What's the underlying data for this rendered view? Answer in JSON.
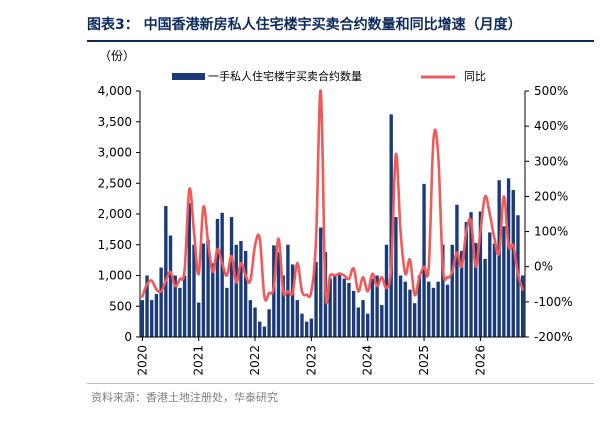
{
  "header": {
    "figure_label": "图表3：",
    "title": "中国香港新房私人住宅楼宇买卖合约数量和同比增速（月度）"
  },
  "footer": {
    "source": "资料来源：香港土地注册处，华泰研究"
  },
  "colors": {
    "bar": "#1a3a7a",
    "line": "#f05a5a",
    "title": "#0b2a5b"
  },
  "chart_data": {
    "type": "bar",
    "left_axis_unit": "（份）",
    "series": [
      {
        "name": "一手私人住宅楼宇买卖合约数量",
        "type": "bar",
        "axis": "left",
        "values": [
          600,
          1000,
          600,
          700,
          1130,
          2130,
          1650,
          1000,
          800,
          1000,
          2180,
          1500,
          560,
          1520,
          1580,
          1200,
          1920,
          2020,
          800,
          1950,
          1500,
          1560,
          1400,
          600,
          480,
          250,
          170,
          450,
          1490,
          1380,
          1000,
          1500,
          1180,
          600,
          380,
          250,
          300,
          1220,
          1780,
          1380,
          950,
          1000,
          1050,
          950,
          880,
          750,
          480,
          600,
          380,
          950,
          1000,
          520,
          1500,
          3620,
          1950,
          1000,
          900,
          770,
          550,
          1000,
          2490,
          900,
          800,
          900,
          1500,
          850,
          1500,
          2150,
          1400,
          1870,
          2030,
          1530,
          2040,
          1270,
          1700,
          1520,
          2550,
          1800,
          2580,
          2390,
          1980,
          1000
        ]
      },
      {
        "name": "同比",
        "type": "line",
        "axis": "right",
        "values": [
          -85,
          -50,
          -40,
          -65,
          -70,
          -40,
          -15,
          -55,
          -35,
          -10,
          220,
          100,
          -20,
          170,
          70,
          -15,
          50,
          10,
          -25,
          30,
          -45,
          10,
          -25,
          -40,
          60,
          80,
          -85,
          -75,
          -60,
          80,
          -70,
          -70,
          -75,
          10,
          -70,
          -80,
          -70,
          80,
          500,
          -70,
          -25,
          -25,
          -20,
          -25,
          -35,
          -5,
          -70,
          -30,
          -70,
          -20,
          -55,
          -30,
          -60,
          0,
          320,
          100,
          -20,
          20,
          -80,
          -30,
          0,
          0,
          360,
          320,
          0,
          -30,
          -15,
          40,
          0,
          100,
          130,
          0,
          100,
          200,
          150,
          80,
          40,
          200,
          60,
          60,
          -20,
          -65
        ]
      }
    ],
    "xlabel": "",
    "x_tick_labels": [
      "2020",
      "2021",
      "2022",
      "2023",
      "2024",
      "2025",
      "2026"
    ],
    "left_axis": {
      "ylim": [
        0,
        4000
      ],
      "tick_labels": [
        "0",
        "500",
        "1,000",
        "1,500",
        "2,000",
        "2,500",
        "3,000",
        "3,500",
        "4,000"
      ]
    },
    "right_axis": {
      "ylim": [
        -200,
        500
      ],
      "tick_labels": [
        "-200%",
        "-100%",
        "0%",
        "100%",
        "200%",
        "300%",
        "400%",
        "500%"
      ]
    },
    "legend_placement": "top",
    "grid": false
  }
}
